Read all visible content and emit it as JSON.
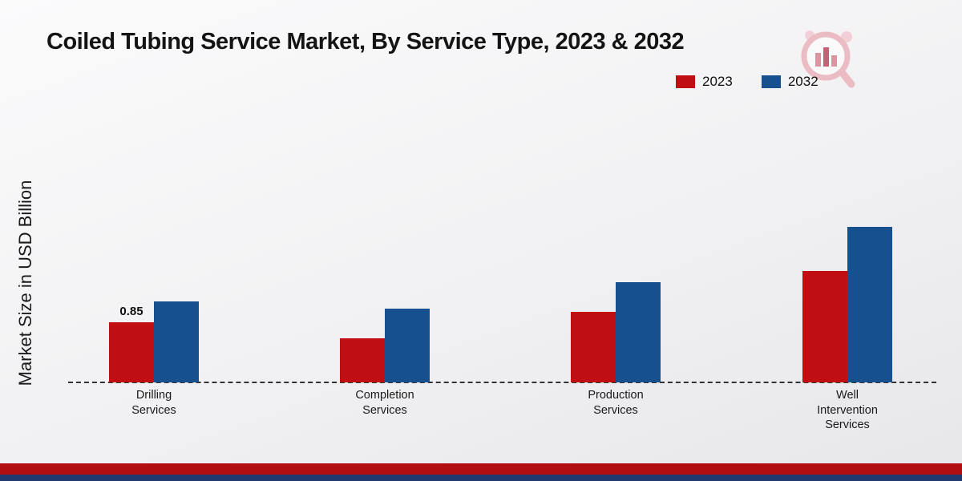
{
  "title": "Coiled Tubing Service Market, By Service Type, 2023 & 2032",
  "ylabel": "Market Size in USD Billion",
  "legend": [
    {
      "label": "2023",
      "color": "#c00f12"
    },
    {
      "label": "2032",
      "color": "#16508f"
    }
  ],
  "chart_data": {
    "type": "bar",
    "title": "Coiled Tubing Service Market, By Service Type, 2023 & 2032",
    "xlabel": "",
    "ylabel": "Market Size in USD Billion",
    "categories": [
      "Drilling Services",
      "Completion Services",
      "Production Services",
      "Well Intervention Services"
    ],
    "category_lines": [
      [
        "Drilling",
        "Services"
      ],
      [
        "Completion",
        "Services"
      ],
      [
        "Production",
        "Services"
      ],
      [
        "Well",
        "Intervention",
        "Services"
      ]
    ],
    "series": [
      {
        "name": "2023",
        "color": "#c00f12",
        "values": [
          0.85,
          0.62,
          1.0,
          1.58
        ],
        "labels": [
          "0.85",
          "",
          "",
          ""
        ]
      },
      {
        "name": "2032",
        "color": "#16508f",
        "values": [
          1.15,
          1.05,
          1.42,
          2.2
        ],
        "labels": [
          "",
          "",
          "",
          ""
        ]
      }
    ],
    "ylim": [
      0,
      2.5
    ],
    "grid": false,
    "axis_style": "dashed-baseline",
    "legend_position": "top-right"
  },
  "footer": {
    "red_band_color": "#b00e11",
    "navy_band_color": "#1e3a6e"
  },
  "logo": {
    "name": "magnifier-bars-logo"
  }
}
